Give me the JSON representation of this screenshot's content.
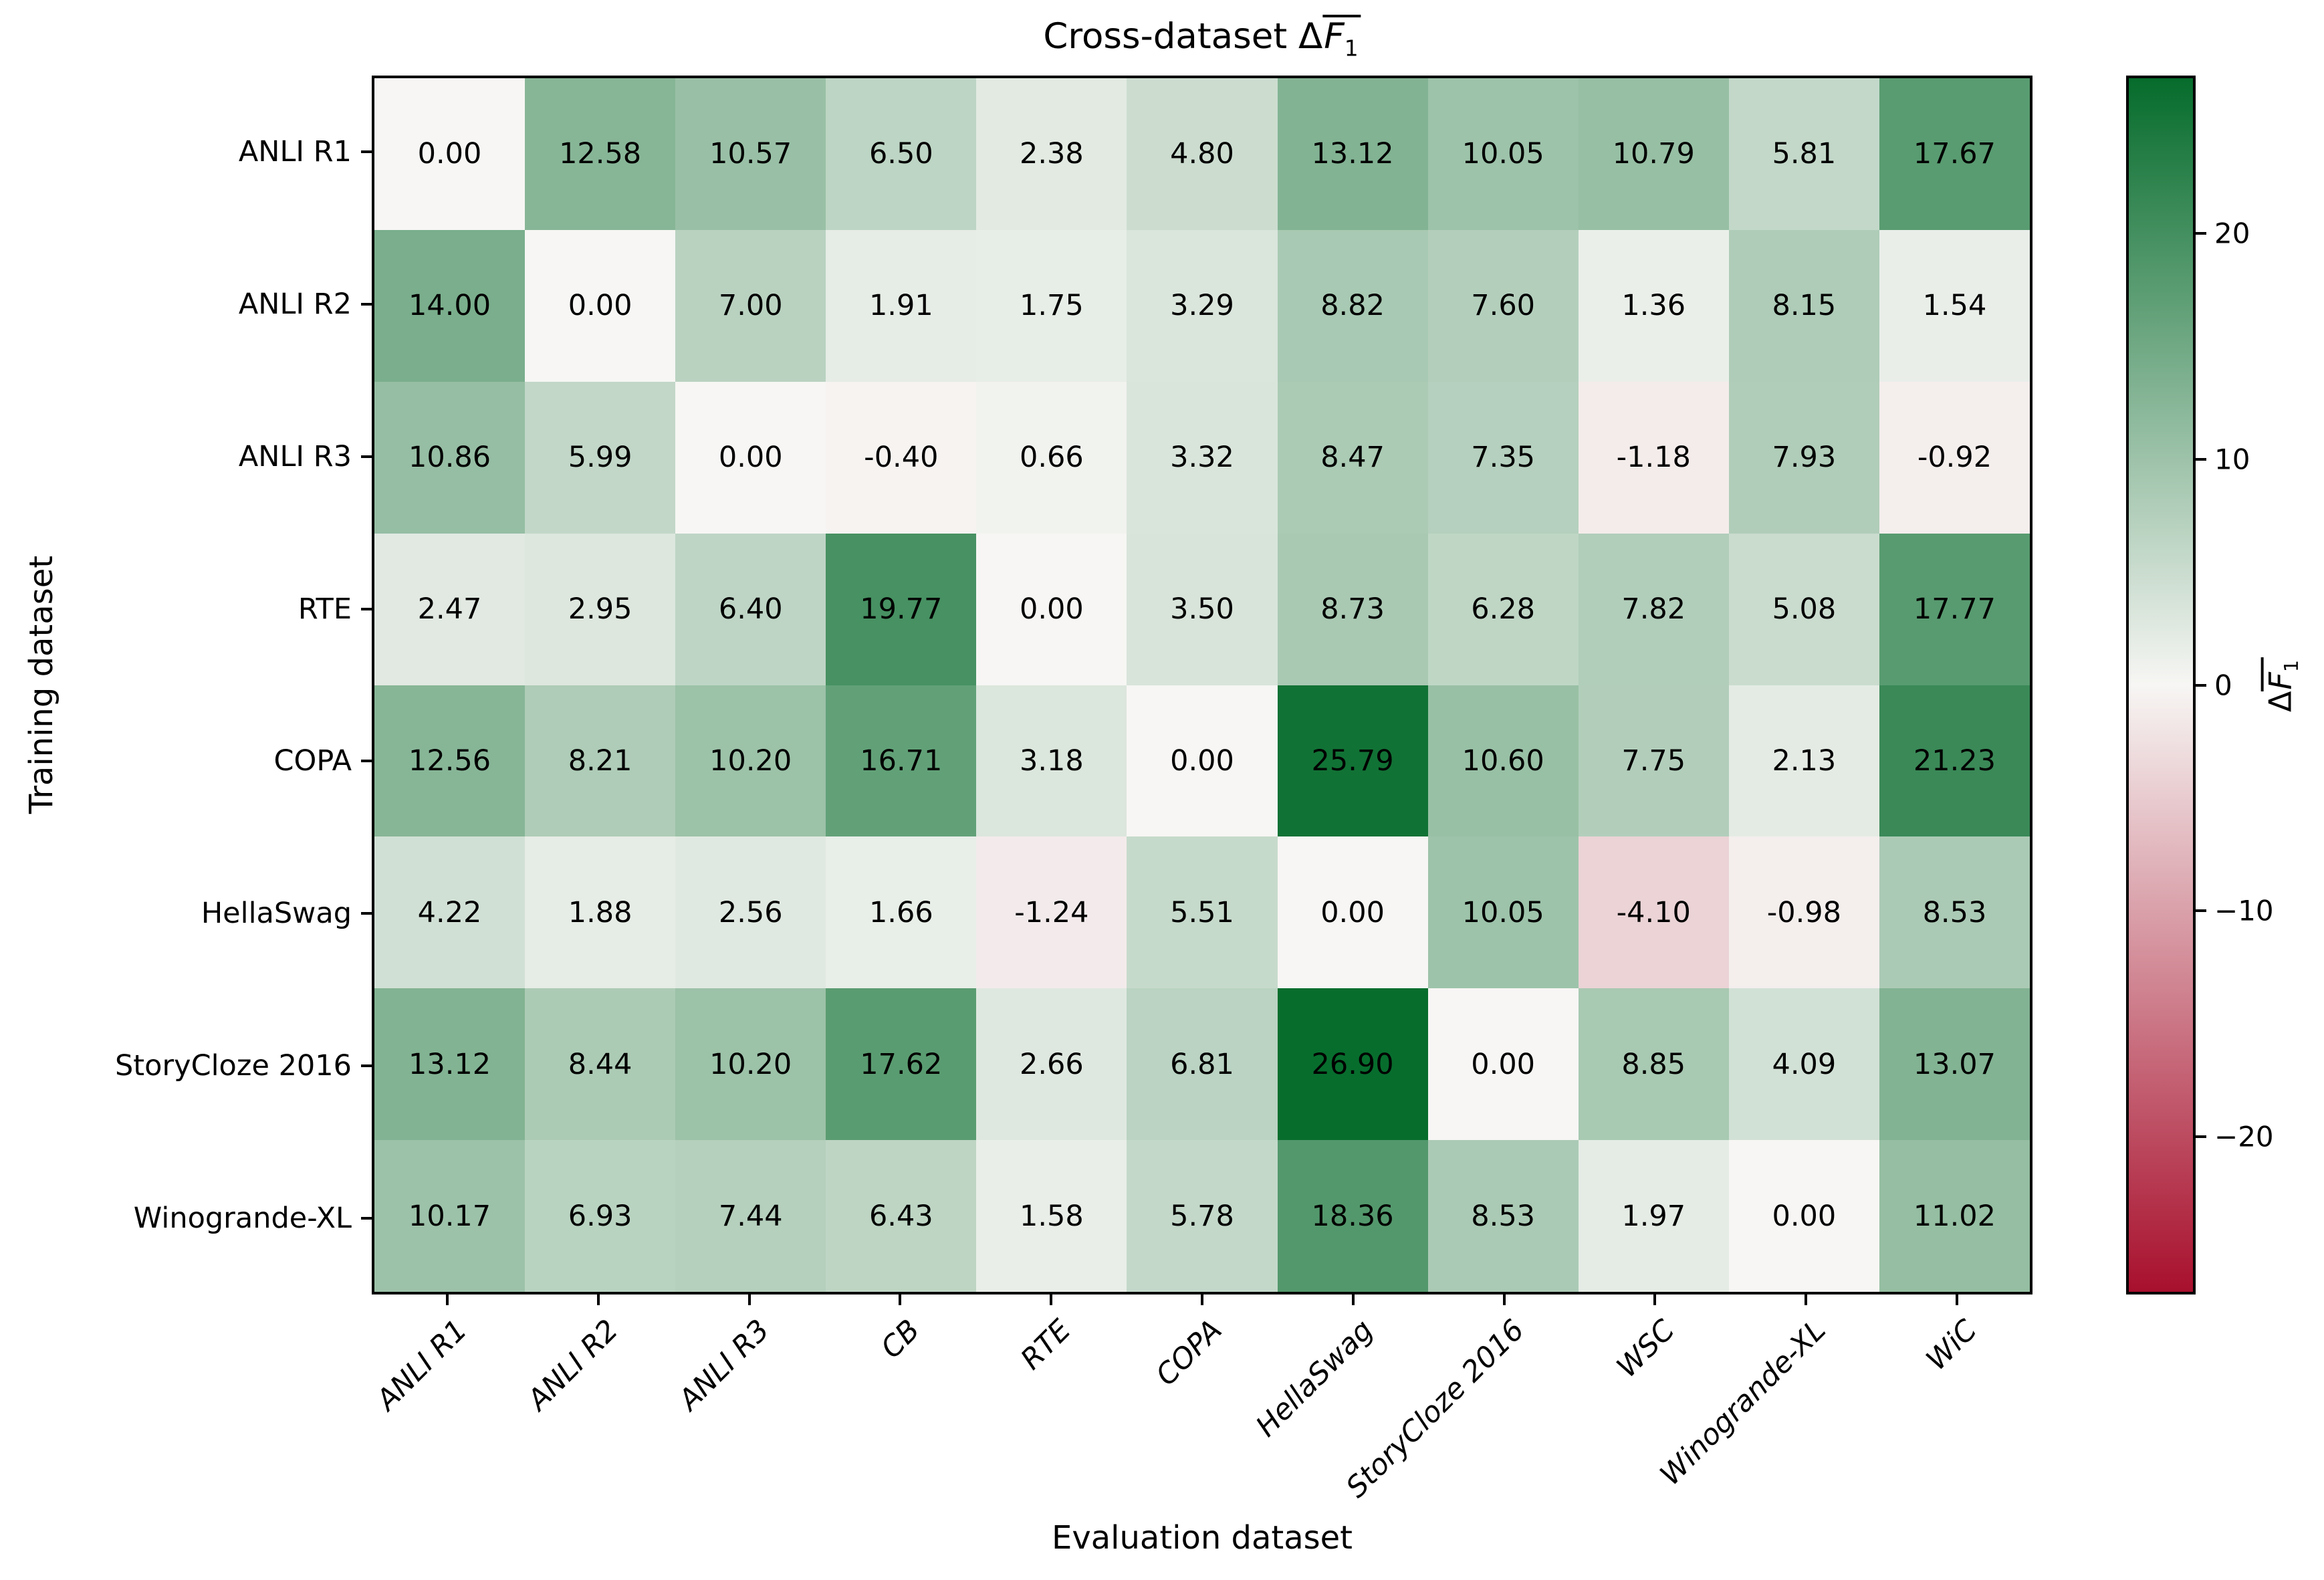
{
  "chart_data": {
    "type": "heatmap",
    "title_prefix": "Cross-dataset ",
    "title_delta": "Δ",
    "title_f": "F",
    "title_sub": "1",
    "xlabel": "Evaluation dataset",
    "ylabel": "Training dataset",
    "colorbar_label_delta": "Δ",
    "colorbar_label_f": "F",
    "colorbar_label_sub": "1",
    "rows": [
      "ANLI R1",
      "ANLI R2",
      "ANLI R3",
      "RTE",
      "COPA",
      "HellaSwag",
      "StoryCloze 2016",
      "Winogrande-XL"
    ],
    "columns": [
      "ANLI R1",
      "ANLI R2",
      "ANLI R3",
      "CB",
      "RTE",
      "COPA",
      "HellaSwag",
      "StoryCloze 2016",
      "WSC",
      "Winogrande-XL",
      "WiC"
    ],
    "values": [
      [
        0.0,
        12.58,
        10.57,
        6.5,
        2.38,
        4.8,
        13.12,
        10.05,
        10.79,
        5.81,
        17.67
      ],
      [
        14.0,
        0.0,
        7.0,
        1.91,
        1.75,
        3.29,
        8.82,
        7.6,
        1.36,
        8.15,
        1.54
      ],
      [
        10.86,
        5.99,
        0.0,
        -0.4,
        0.66,
        3.32,
        8.47,
        7.35,
        -1.18,
        7.93,
        -0.92
      ],
      [
        2.47,
        2.95,
        6.4,
        19.77,
        0.0,
        3.5,
        8.73,
        6.28,
        7.82,
        5.08,
        17.77
      ],
      [
        12.56,
        8.21,
        10.2,
        16.71,
        3.18,
        0.0,
        25.79,
        10.6,
        7.75,
        2.13,
        21.23
      ],
      [
        4.22,
        1.88,
        2.56,
        1.66,
        -1.24,
        5.51,
        0.0,
        10.05,
        -4.1,
        -0.98,
        8.53
      ],
      [
        13.12,
        8.44,
        10.2,
        17.62,
        2.66,
        6.81,
        26.9,
        0.0,
        8.85,
        4.09,
        13.07
      ],
      [
        10.17,
        6.93,
        7.44,
        6.43,
        1.58,
        5.78,
        18.36,
        8.53,
        1.97,
        0.0,
        11.02
      ]
    ],
    "value_decimals": 2,
    "vmin": -27,
    "vmax": 27,
    "colorbar_ticks": [
      {
        "value": 20,
        "label": "20"
      },
      {
        "value": 10,
        "label": "10"
      },
      {
        "value": 0,
        "label": "0"
      },
      {
        "value": -10,
        "label": "−10"
      },
      {
        "value": -20,
        "label": "−20"
      }
    ],
    "colors": {
      "positive_end": "#066C2C",
      "center": "#F7F6F4",
      "negative_end": "#A8102D"
    },
    "legend_position": "right-colorbar",
    "grid": false
  }
}
